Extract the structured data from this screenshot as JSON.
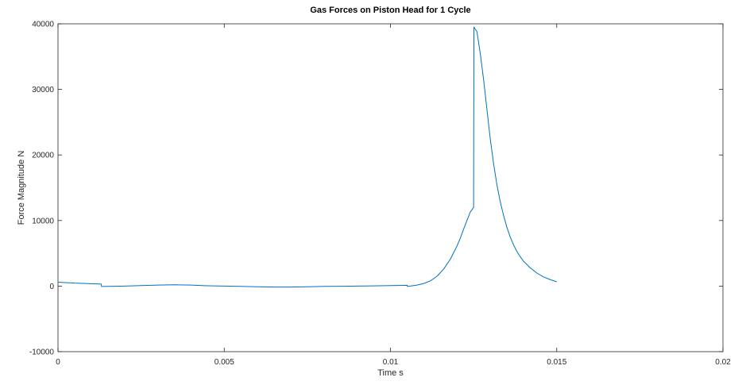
{
  "chart_data": {
    "type": "line",
    "title": "Gas Forces on Piston Head for 1 Cycle",
    "xlabel": "Time s",
    "ylabel": "Force Magnitude N",
    "xlim": [
      0,
      0.02
    ],
    "ylim": [
      -10000,
      40000
    ],
    "xticks": [
      0,
      0.005,
      0.01,
      0.015,
      0.02
    ],
    "xtick_labels": [
      "0",
      "0.005",
      "0.01",
      "0.015",
      "0.02"
    ],
    "yticks": [
      -10000,
      0,
      10000,
      20000,
      30000,
      40000
    ],
    "ytick_labels": [
      "-10000",
      "0",
      "10000",
      "20000",
      "30000",
      "40000"
    ],
    "grid": false,
    "series": [
      {
        "color": "#0072bd",
        "x": [
          0,
          0.0005,
          0.0013,
          0.00131,
          0.002,
          0.0025,
          0.003,
          0.0035,
          0.004,
          0.0045,
          0.005,
          0.0055,
          0.006,
          0.0065,
          0.007,
          0.0075,
          0.008,
          0.0085,
          0.009,
          0.0095,
          0.01,
          0.0105,
          0.01051,
          0.0108,
          0.011,
          0.0112,
          0.0114,
          0.0116,
          0.0118,
          0.012,
          0.0121,
          0.0122,
          0.0123,
          0.0124,
          0.0125,
          0.01251,
          0.0126,
          0.0127,
          0.0128,
          0.0129,
          0.013,
          0.0131,
          0.0132,
          0.0133,
          0.0134,
          0.0135,
          0.0136,
          0.0137,
          0.0138,
          0.0139,
          0.014,
          0.0142,
          0.0144,
          0.0146,
          0.0148,
          0.015
        ],
        "y": [
          600,
          450,
          300,
          -60,
          0,
          80,
          150,
          200,
          150,
          50,
          0,
          -50,
          -100,
          -150,
          -150,
          -100,
          -50,
          -20,
          0,
          40,
          80,
          120,
          -60,
          150,
          400,
          800,
          1500,
          2600,
          4100,
          6100,
          7300,
          8700,
          10000,
          11300,
          12000,
          39500,
          38800,
          35500,
          31500,
          27000,
          22500,
          18700,
          15500,
          12900,
          10800,
          9000,
          7500,
          6300,
          5300,
          4500,
          3800,
          2800,
          2000,
          1400,
          1000,
          650
        ]
      }
    ]
  }
}
